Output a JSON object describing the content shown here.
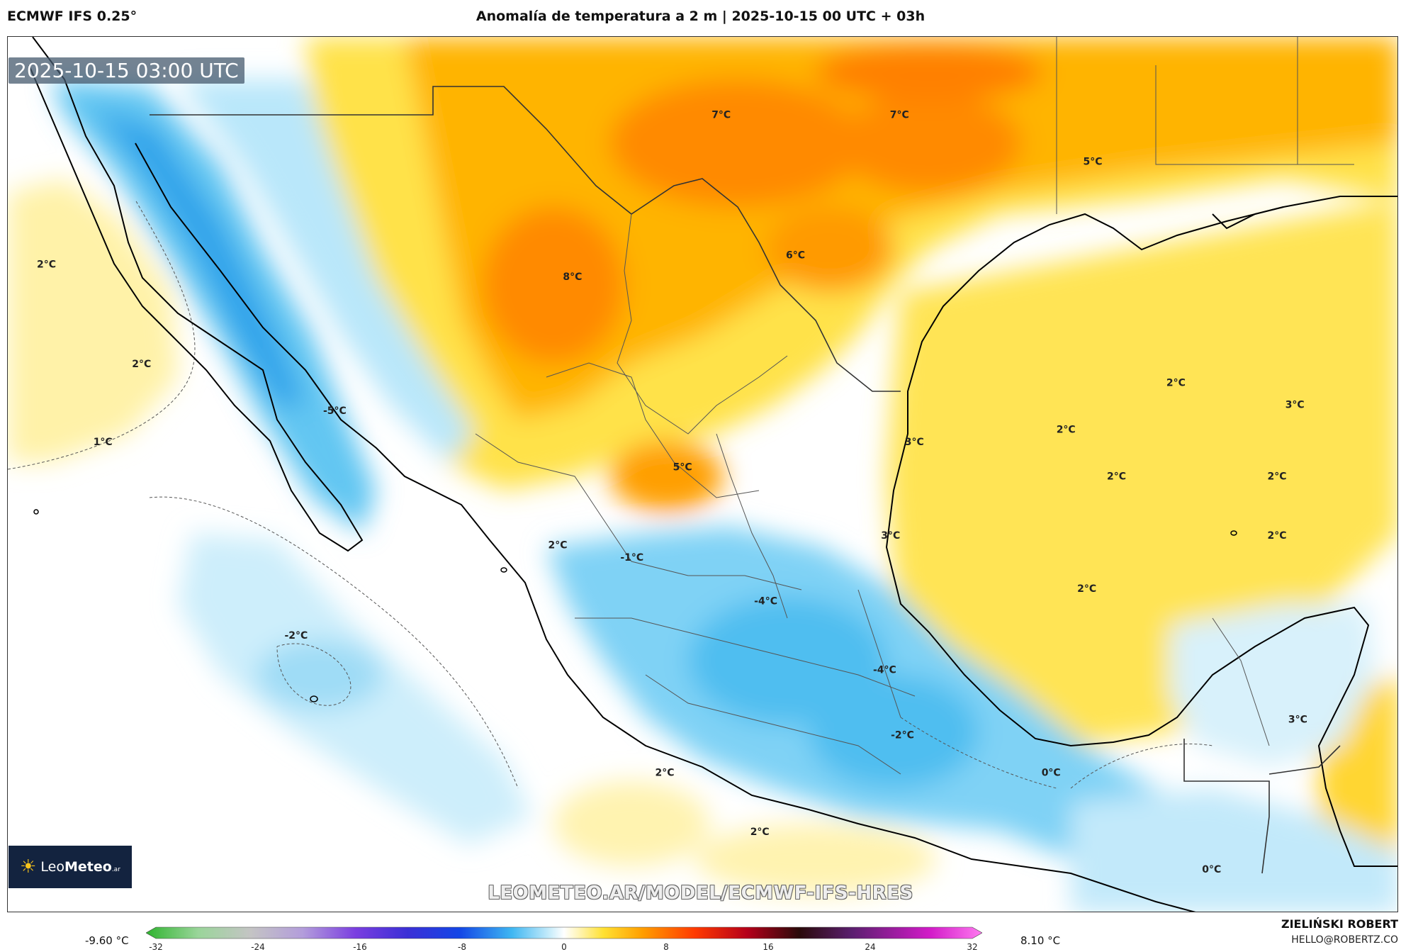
{
  "header": {
    "model": "ECMWF IFS 0.25°",
    "title": "Anomalía de temperatura a 2 m | 2025-10-15 00 UTC + 03h"
  },
  "map": {
    "timestamp": "2025-10-15 03:00 UTC",
    "labels": [
      {
        "text": "7°C",
        "lon": -103.0,
        "lat": 34.0
      },
      {
        "text": "7°C",
        "lon": -97.0,
        "lat": 34.0
      },
      {
        "text": "5°C",
        "lon": -90.5,
        "lat": 32.5
      },
      {
        "text": "2°C",
        "lon": -125.7,
        "lat": 29.2
      },
      {
        "text": "8°C",
        "lon": -108.0,
        "lat": 28.8
      },
      {
        "text": "6°C",
        "lon": -100.5,
        "lat": 29.5
      },
      {
        "text": "2°C",
        "lon": -122.5,
        "lat": 26.0
      },
      {
        "text": "-5°C",
        "lon": -116.0,
        "lat": 24.5
      },
      {
        "text": "1°C",
        "lon": -123.8,
        "lat": 23.5
      },
      {
        "text": "2°C",
        "lon": -87.7,
        "lat": 25.4
      },
      {
        "text": "3°C",
        "lon": -83.7,
        "lat": 24.7
      },
      {
        "text": "3°C",
        "lon": -96.5,
        "lat": 23.5
      },
      {
        "text": "2°C",
        "lon": -91.4,
        "lat": 23.9
      },
      {
        "text": "5°C",
        "lon": -104.3,
        "lat": 22.7
      },
      {
        "text": "2°C",
        "lon": -89.7,
        "lat": 22.4
      },
      {
        "text": "2°C",
        "lon": -84.3,
        "lat": 22.4
      },
      {
        "text": "3°C",
        "lon": -97.3,
        "lat": 20.5
      },
      {
        "text": "2°C",
        "lon": -108.5,
        "lat": 20.2
      },
      {
        "text": "-1°C",
        "lon": -106.0,
        "lat": 19.8
      },
      {
        "text": "2°C",
        "lon": -84.3,
        "lat": 20.5
      },
      {
        "text": "2°C",
        "lon": -90.7,
        "lat": 18.8
      },
      {
        "text": "-4°C",
        "lon": -101.5,
        "lat": 18.4
      },
      {
        "text": "-2°C",
        "lon": -117.3,
        "lat": 17.3
      },
      {
        "text": "-4°C",
        "lon": -97.5,
        "lat": 16.2
      },
      {
        "text": "3°C",
        "lon": -83.6,
        "lat": 14.6
      },
      {
        "text": "-2°C",
        "lon": -96.9,
        "lat": 14.1
      },
      {
        "text": "0°C",
        "lon": -91.9,
        "lat": 12.9
      },
      {
        "text": "2°C",
        "lon": -104.9,
        "lat": 12.9
      },
      {
        "text": "2°C",
        "lon": -101.7,
        "lat": 11.0
      },
      {
        "text": "0°C",
        "lon": -86.5,
        "lat": 9.8
      }
    ]
  },
  "logo": {
    "brand_light": "Leo",
    "brand_bold": "Meteo",
    "brand_suffix": ".ar",
    "icon": "sun-icon"
  },
  "watermark_url": "LEOMETEO.AR/MODEL/ECMWF-IFS-HRES",
  "colorbar": {
    "min_label": "-9.60 °C",
    "max_label": "8.10 °C",
    "ticks": [
      "-32",
      "-24",
      "-16",
      "-8",
      "0",
      "8",
      "16",
      "24",
      "32"
    ],
    "range": [
      -32,
      32
    ],
    "stops": [
      {
        "v": -32,
        "c": "#2fb42f"
      },
      {
        "v": -28,
        "c": "#9ad59a"
      },
      {
        "v": -24,
        "c": "#c4c4c4"
      },
      {
        "v": -20,
        "c": "#b39ddb"
      },
      {
        "v": -16,
        "c": "#7b3fe0"
      },
      {
        "v": -12,
        "c": "#3b2fd6"
      },
      {
        "v": -8,
        "c": "#1346e6"
      },
      {
        "v": -4,
        "c": "#3fb7f2"
      },
      {
        "v": -1,
        "c": "#cdeefb"
      },
      {
        "v": 0,
        "c": "#ffffff"
      },
      {
        "v": 1,
        "c": "#fff6bf"
      },
      {
        "v": 3,
        "c": "#ffe133"
      },
      {
        "v": 6,
        "c": "#ff9e00"
      },
      {
        "v": 10,
        "c": "#ff3a00"
      },
      {
        "v": 14,
        "c": "#b5001a"
      },
      {
        "v": 18,
        "c": "#2a0a0a"
      },
      {
        "v": 22,
        "c": "#5a1f6e"
      },
      {
        "v": 28,
        "c": "#d21bc8"
      },
      {
        "v": 32,
        "c": "#ff7af0"
      }
    ]
  },
  "author": {
    "name": "ZIELIŃSKI ROBERT",
    "email": "HELLO@ROBERTZ.CO"
  },
  "colors": {
    "coastline": "#000000",
    "state_border": "#555555",
    "contour": "#555555"
  }
}
